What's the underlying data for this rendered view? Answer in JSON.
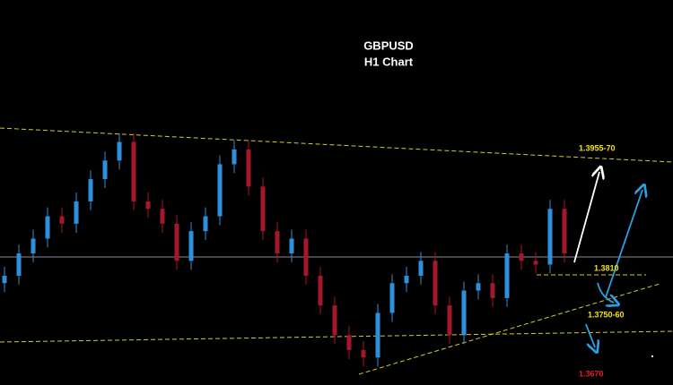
{
  "chart_data": {
    "type": "candlestick",
    "title": "GBPUSD",
    "subtitle": "H1 Chart",
    "up_color": "#2f8fd8",
    "down_color": "#a3182b",
    "ylim": [
      1.3653,
      1.4171
    ],
    "open": [
      1.379,
      1.38,
      1.383,
      1.385,
      1.388,
      1.387,
      1.39,
      1.393,
      1.3955,
      1.398,
      1.39,
      1.389,
      1.387,
      1.382,
      1.386,
      1.388,
      1.395,
      1.397,
      1.392,
      1.386,
      1.383,
      1.385,
      1.38,
      1.376,
      1.372,
      1.37,
      1.369,
      1.375,
      1.379,
      1.38,
      1.382,
      1.376,
      1.372,
      1.378,
      1.379,
      1.377,
      1.383,
      1.382,
      1.3815,
      1.389
    ],
    "high": [
      1.3812,
      1.3842,
      1.3862,
      1.3892,
      1.3892,
      1.3912,
      1.3942,
      1.3967,
      1.3992,
      1.3992,
      1.3912,
      1.3902,
      1.3882,
      1.3872,
      1.3892,
      1.3962,
      1.3982,
      1.3982,
      1.3932,
      1.3872,
      1.3862,
      1.3862,
      1.3812,
      1.3772,
      1.3732,
      1.3712,
      1.3762,
      1.3802,
      1.3812,
      1.3832,
      1.3832,
      1.3772,
      1.3792,
      1.3802,
      1.3802,
      1.3842,
      1.3842,
      1.3832,
      1.3902,
      1.3902
    ],
    "low": [
      1.3778,
      1.3788,
      1.3818,
      1.3838,
      1.3858,
      1.3858,
      1.3888,
      1.3918,
      1.3943,
      1.3888,
      1.3878,
      1.3858,
      1.3808,
      1.3808,
      1.3848,
      1.3868,
      1.3938,
      1.3908,
      1.3848,
      1.3818,
      1.3818,
      1.3788,
      1.3748,
      1.3708,
      1.3688,
      1.3678,
      1.3678,
      1.3738,
      1.3778,
      1.3788,
      1.3748,
      1.3708,
      1.3708,
      1.3768,
      1.3758,
      1.3758,
      1.3808,
      1.3803,
      1.3803,
      1.3818
    ],
    "close": [
      1.38,
      1.383,
      1.385,
      1.388,
      1.387,
      1.39,
      1.393,
      1.3955,
      1.398,
      1.39,
      1.389,
      1.387,
      1.382,
      1.386,
      1.388,
      1.395,
      1.397,
      1.392,
      1.386,
      1.383,
      1.385,
      1.38,
      1.376,
      1.372,
      1.37,
      1.369,
      1.375,
      1.379,
      1.38,
      1.382,
      1.376,
      1.372,
      1.378,
      1.379,
      1.377,
      1.383,
      1.382,
      1.3815,
      1.389,
      1.383
    ],
    "annotations": [
      {
        "text": "1.3955-70",
        "color": "#f2e600"
      },
      {
        "text": "1.3810",
        "color": "#f2e600"
      },
      {
        "text": "1.3750-60",
        "color": "#f2e600"
      },
      {
        "text": "1.3670",
        "color": "#e0202a"
      }
    ]
  }
}
